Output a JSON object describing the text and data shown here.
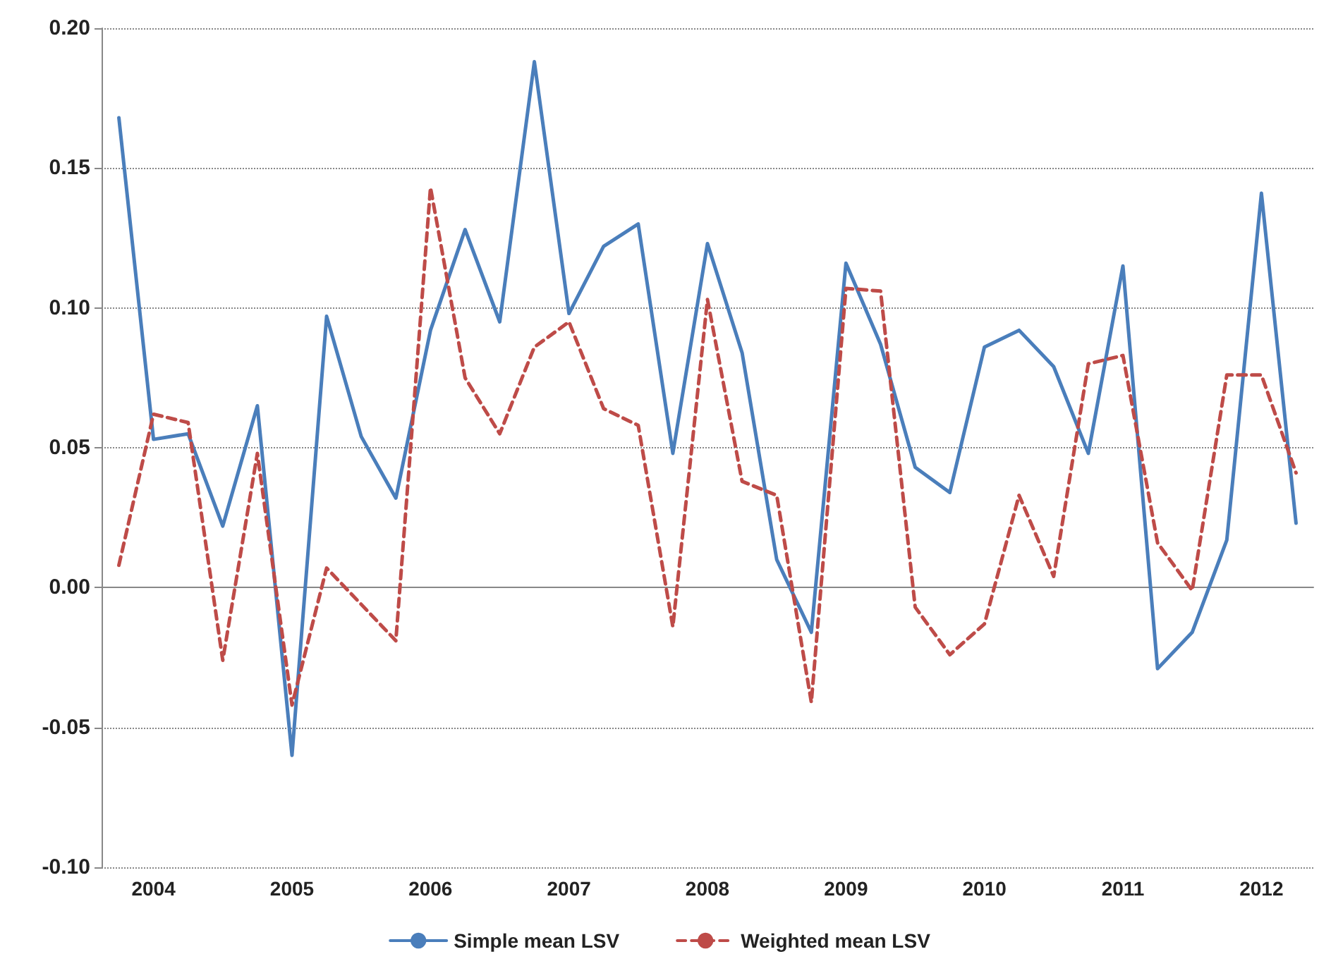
{
  "chart_data": {
    "type": "line",
    "categories": [
      null,
      "2004",
      null,
      null,
      null,
      "2005",
      null,
      null,
      null,
      "2006",
      null,
      null,
      null,
      "2007",
      null,
      null,
      null,
      "2008",
      null,
      null,
      null,
      "2009",
      null,
      null,
      null,
      "2010",
      null,
      null,
      null,
      "2011",
      null,
      null,
      null,
      "2012",
      null
    ],
    "series": [
      {
        "name": "Simple mean LSV",
        "color": "#4a7ebb",
        "line_style": "solid",
        "values": [
          0.168,
          0.053,
          0.055,
          0.022,
          0.065,
          -0.06,
          0.097,
          0.054,
          0.032,
          0.092,
          0.128,
          0.095,
          0.188,
          0.098,
          0.122,
          0.13,
          0.048,
          0.123,
          0.084,
          0.01,
          -0.016,
          0.116,
          0.087,
          0.043,
          0.034,
          0.086,
          0.092,
          0.079,
          0.048,
          0.115,
          -0.029,
          -0.016,
          0.017,
          0.141,
          0.023
        ]
      },
      {
        "name": "Weighted mean LSV",
        "color": "#be4b48",
        "line_style": "dashed",
        "values": [
          0.008,
          0.062,
          0.059,
          -0.026,
          0.048,
          -0.042,
          0.007,
          -0.006,
          -0.019,
          0.143,
          0.075,
          0.055,
          0.086,
          0.095,
          0.064,
          0.058,
          -0.014,
          0.103,
          0.038,
          0.033,
          -0.041,
          0.107,
          0.106,
          -0.007,
          -0.024,
          -0.013,
          0.033,
          0.004,
          0.08,
          0.083,
          0.016,
          -0.001,
          0.076,
          0.076,
          0.041
        ]
      }
    ],
    "ylim": [
      -0.1,
      0.2
    ],
    "yticks": [
      {
        "value": -0.1,
        "label": "-0.10"
      },
      {
        "value": -0.05,
        "label": "-0.05"
      },
      {
        "value": 0,
        "label": "0.00"
      },
      {
        "value": 0.05,
        "label": "0.05"
      },
      {
        "value": 0.1,
        "label": "0.10"
      },
      {
        "value": 0.15,
        "label": "0.15"
      },
      {
        "value": 0.2,
        "label": "0.20"
      }
    ],
    "grid": "y",
    "legend": "bottom",
    "marker": "none"
  }
}
